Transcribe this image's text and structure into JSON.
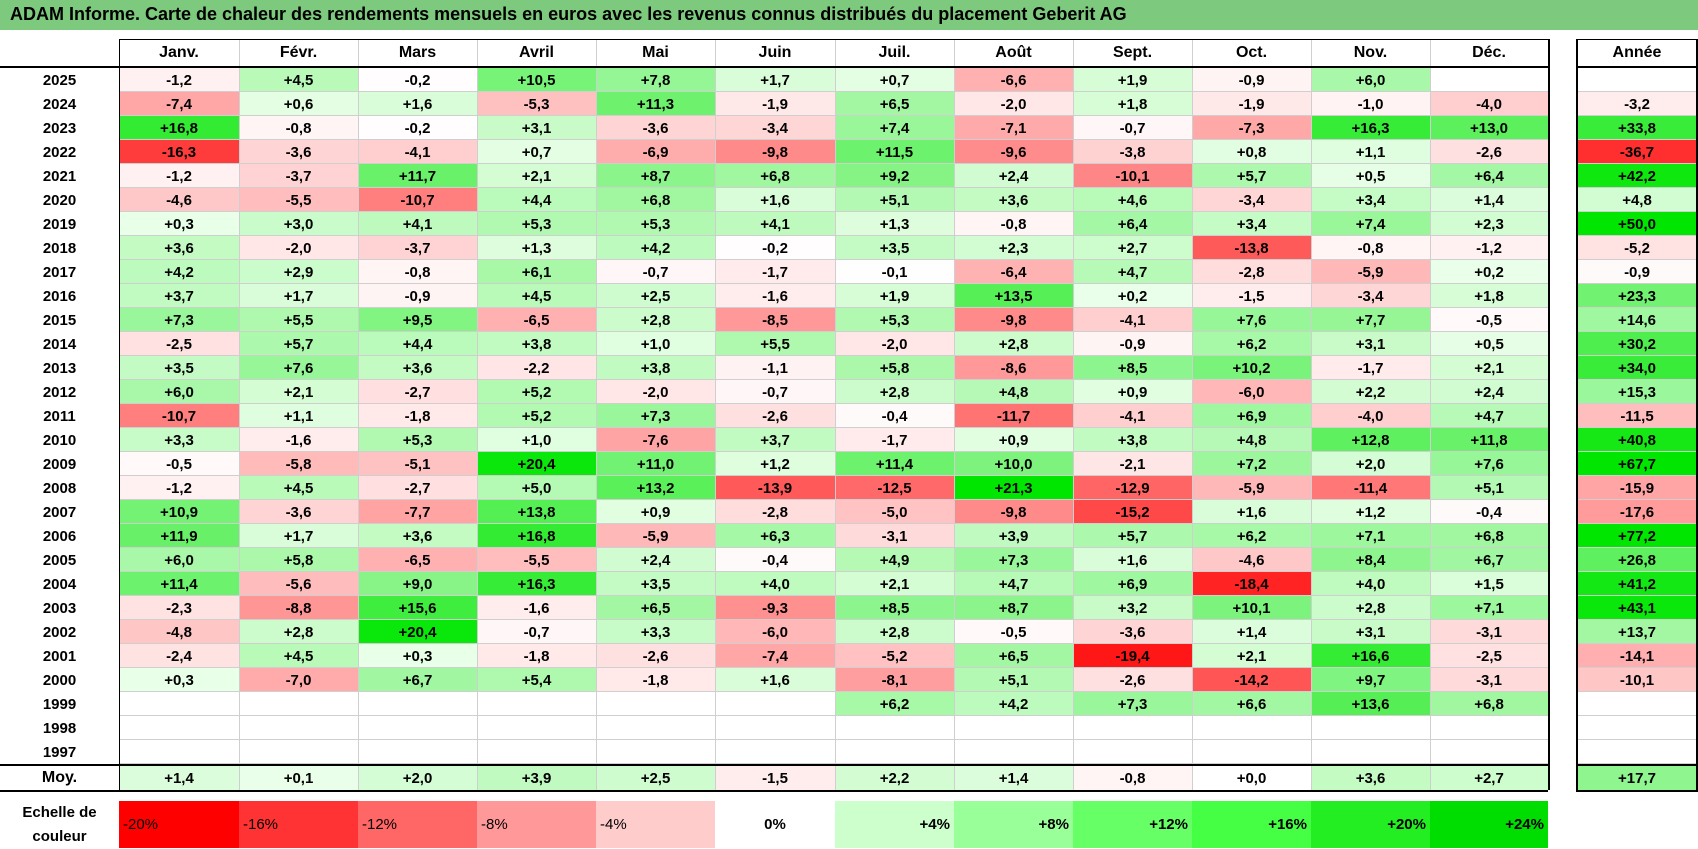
{
  "title": "ADAM Informe. Carte de chaleur des rendements mensuels en euros avec les revenus connus distribués du placement Geberit AG",
  "chart_data": {
    "type": "heatmap",
    "title": "ADAM Informe. Carte de chaleur des rendements mensuels en euros avec les revenus connus distribués du placement Geberit AG",
    "columns": [
      "Janv.",
      "Févr.",
      "Mars",
      "Avril",
      "Mai",
      "Juin",
      "Juil.",
      "Août",
      "Sept.",
      "Oct.",
      "Nov.",
      "Déc."
    ],
    "year_column": "Année",
    "rows": [
      {
        "year": "2025",
        "values": [
          "-1,2",
          "+4,5",
          "-0,2",
          "+10,5",
          "+7,8",
          "+1,7",
          "+0,7",
          "-6,6",
          "+1,9",
          "-0,9",
          "+6,0",
          ""
        ],
        "annual": ""
      },
      {
        "year": "2024",
        "values": [
          "-7,4",
          "+0,6",
          "+1,6",
          "-5,3",
          "+11,3",
          "-1,9",
          "+6,5",
          "-2,0",
          "+1,8",
          "-1,9",
          "-1,0",
          "-4,0"
        ],
        "annual": "-3,2"
      },
      {
        "year": "2023",
        "values": [
          "+16,8",
          "-0,8",
          "-0,2",
          "+3,1",
          "-3,6",
          "-3,4",
          "+7,4",
          "-7,1",
          "-0,7",
          "-7,3",
          "+16,3",
          "+13,0"
        ],
        "annual": "+33,8"
      },
      {
        "year": "2022",
        "values": [
          "-16,3",
          "-3,6",
          "-4,1",
          "+0,7",
          "-6,9",
          "-9,8",
          "+11,5",
          "-9,6",
          "-3,8",
          "+0,8",
          "+1,1",
          "-2,6"
        ],
        "annual": "-36,7"
      },
      {
        "year": "2021",
        "values": [
          "-1,2",
          "-3,7",
          "+11,7",
          "+2,1",
          "+8,7",
          "+6,8",
          "+9,2",
          "+2,4",
          "-10,1",
          "+5,7",
          "+0,5",
          "+6,4"
        ],
        "annual": "+42,2"
      },
      {
        "year": "2020",
        "values": [
          "-4,6",
          "-5,5",
          "-10,7",
          "+4,4",
          "+6,8",
          "+1,6",
          "+5,1",
          "+3,6",
          "+4,6",
          "-3,4",
          "+3,4",
          "+1,4"
        ],
        "annual": "+4,8"
      },
      {
        "year": "2019",
        "values": [
          "+0,3",
          "+3,0",
          "+4,1",
          "+5,3",
          "+5,3",
          "+4,1",
          "+1,3",
          "-0,8",
          "+6,4",
          "+3,4",
          "+7,4",
          "+2,3"
        ],
        "annual": "+50,0"
      },
      {
        "year": "2018",
        "values": [
          "+3,6",
          "-2,0",
          "-3,7",
          "+1,3",
          "+4,2",
          "-0,2",
          "+3,5",
          "+2,3",
          "+2,7",
          "-13,8",
          "-0,8",
          "-1,2"
        ],
        "annual": "-5,2"
      },
      {
        "year": "2017",
        "values": [
          "+4,2",
          "+2,9",
          "-0,8",
          "+6,1",
          "-0,7",
          "-1,7",
          "-0,1",
          "-6,4",
          "+4,7",
          "-2,8",
          "-5,9",
          "+0,2"
        ],
        "annual": "-0,9"
      },
      {
        "year": "2016",
        "values": [
          "+3,7",
          "+1,7",
          "-0,9",
          "+4,5",
          "+2,5",
          "-1,6",
          "+1,9",
          "+13,5",
          "+0,2",
          "-1,5",
          "-3,4",
          "+1,8"
        ],
        "annual": "+23,3"
      },
      {
        "year": "2015",
        "values": [
          "+7,3",
          "+5,5",
          "+9,5",
          "-6,5",
          "+2,8",
          "-8,5",
          "+5,3",
          "-9,8",
          "-4,1",
          "+7,6",
          "+7,7",
          "-0,5"
        ],
        "annual": "+14,6"
      },
      {
        "year": "2014",
        "values": [
          "-2,5",
          "+5,7",
          "+4,4",
          "+3,8",
          "+1,0",
          "+5,5",
          "-2,0",
          "+2,8",
          "-0,9",
          "+6,2",
          "+3,1",
          "+0,5"
        ],
        "annual": "+30,2"
      },
      {
        "year": "2013",
        "values": [
          "+3,5",
          "+7,6",
          "+3,6",
          "-2,2",
          "+3,8",
          "-1,1",
          "+5,8",
          "-8,6",
          "+8,5",
          "+10,2",
          "-1,7",
          "+2,1"
        ],
        "annual": "+34,0"
      },
      {
        "year": "2012",
        "values": [
          "+6,0",
          "+2,1",
          "-2,7",
          "+5,2",
          "-2,0",
          "-0,7",
          "+2,8",
          "+4,8",
          "+0,9",
          "-6,0",
          "+2,2",
          "+2,4"
        ],
        "annual": "+15,3"
      },
      {
        "year": "2011",
        "values": [
          "-10,7",
          "+1,1",
          "-1,8",
          "+5,2",
          "+7,3",
          "-2,6",
          "-0,4",
          "-11,7",
          "-4,1",
          "+6,9",
          "-4,0",
          "+4,7"
        ],
        "annual": "-11,5"
      },
      {
        "year": "2010",
        "values": [
          "+3,3",
          "-1,6",
          "+5,3",
          "+1,0",
          "-7,6",
          "+3,7",
          "-1,7",
          "+0,9",
          "+3,8",
          "+4,8",
          "+12,8",
          "+11,8"
        ],
        "annual": "+40,8"
      },
      {
        "year": "2009",
        "values": [
          "-0,5",
          "-5,8",
          "-5,1",
          "+20,4",
          "+11,0",
          "+1,2",
          "+11,4",
          "+10,0",
          "-2,1",
          "+7,2",
          "+2,0",
          "+7,6"
        ],
        "annual": "+67,7"
      },
      {
        "year": "2008",
        "values": [
          "-1,2",
          "+4,5",
          "-2,7",
          "+5,0",
          "+13,2",
          "-13,9",
          "-12,5",
          "+21,3",
          "-12,9",
          "-5,9",
          "-11,4",
          "+5,1"
        ],
        "annual": "-15,9"
      },
      {
        "year": "2007",
        "values": [
          "+10,9",
          "-3,6",
          "-7,7",
          "+13,8",
          "+0,9",
          "-2,8",
          "-5,0",
          "-9,8",
          "-15,2",
          "+1,6",
          "+1,2",
          "-0,4"
        ],
        "annual": "-17,6"
      },
      {
        "year": "2006",
        "values": [
          "+11,9",
          "+1,7",
          "+3,6",
          "+16,8",
          "-5,9",
          "+6,3",
          "-3,1",
          "+3,9",
          "+5,7",
          "+6,2",
          "+7,1",
          "+6,8"
        ],
        "annual": "+77,2"
      },
      {
        "year": "2005",
        "values": [
          "+6,0",
          "+5,8",
          "-6,5",
          "-5,5",
          "+2,4",
          "-0,4",
          "+4,9",
          "+7,3",
          "+1,6",
          "-4,6",
          "+8,4",
          "+6,7"
        ],
        "annual": "+26,8"
      },
      {
        "year": "2004",
        "values": [
          "+11,4",
          "-5,6",
          "+9,0",
          "+16,3",
          "+3,5",
          "+4,0",
          "+2,1",
          "+4,7",
          "+6,9",
          "-18,4",
          "+4,0",
          "+1,5"
        ],
        "annual": "+41,2"
      },
      {
        "year": "2003",
        "values": [
          "-2,3",
          "-8,8",
          "+15,6",
          "-1,6",
          "+6,5",
          "-9,3",
          "+8,5",
          "+8,7",
          "+3,2",
          "+10,1",
          "+2,8",
          "+7,1"
        ],
        "annual": "+43,1"
      },
      {
        "year": "2002",
        "values": [
          "-4,8",
          "+2,8",
          "+20,4",
          "-0,7",
          "+3,3",
          "-6,0",
          "+2,8",
          "-0,5",
          "-3,6",
          "+1,4",
          "+3,1",
          "-3,1"
        ],
        "annual": "+13,7"
      },
      {
        "year": "2001",
        "values": [
          "-2,4",
          "+4,5",
          "+0,3",
          "-1,8",
          "-2,6",
          "-7,4",
          "-5,2",
          "+6,5",
          "-19,4",
          "+2,1",
          "+16,6",
          "-2,5"
        ],
        "annual": "-14,1"
      },
      {
        "year": "2000",
        "values": [
          "+0,3",
          "-7,0",
          "+6,7",
          "+5,4",
          "-1,8",
          "+1,6",
          "-8,1",
          "+5,1",
          "-2,6",
          "-14,2",
          "+9,7",
          "-3,1"
        ],
        "annual": "-10,1"
      },
      {
        "year": "1999",
        "values": [
          "",
          "",
          "",
          "",
          "",
          "",
          "+6,2",
          "+4,2",
          "+7,3",
          "+6,6",
          "+13,6",
          "+6,8"
        ],
        "annual": ""
      },
      {
        "year": "1998",
        "values": [
          "",
          "",
          "",
          "",
          "",
          "",
          "",
          "",
          "",
          "",
          "",
          ""
        ],
        "annual": ""
      },
      {
        "year": "1997",
        "values": [
          "",
          "",
          "",
          "",
          "",
          "",
          "",
          "",
          "",
          "",
          "",
          ""
        ],
        "annual": ""
      }
    ],
    "average": {
      "label": "Moy.",
      "values": [
        "+1,4",
        "+0,1",
        "+2,0",
        "+3,9",
        "+2,5",
        "-1,5",
        "+2,2",
        "+1,4",
        "-0,8",
        "+0,0",
        "+3,6",
        "+2,7"
      ],
      "annual": "+17,7"
    },
    "color_scale": {
      "label": [
        "Echelle de",
        "couleur"
      ],
      "steps": [
        {
          "label": "-20%",
          "value": -20,
          "color": "#ff0000"
        },
        {
          "label": "-16%",
          "value": -16,
          "color": "#ff3333"
        },
        {
          "label": "-12%",
          "value": -12,
          "color": "#ff6666"
        },
        {
          "label": "-8%",
          "value": -8,
          "color": "#ff9999"
        },
        {
          "label": "-4%",
          "value": -4,
          "color": "#ffcccc"
        },
        {
          "label": "0%",
          "value": 0,
          "color": "#ffffff"
        },
        {
          "label": "+4%",
          "value": 4,
          "color": "#ccffcc"
        },
        {
          "label": "+8%",
          "value": 8,
          "color": "#99ff99"
        },
        {
          "label": "+12%",
          "value": 12,
          "color": "#66ff66"
        },
        {
          "label": "+16%",
          "value": 16,
          "color": "#44ff44"
        },
        {
          "label": "+20%",
          "value": 20,
          "color": "#22ee22"
        },
        {
          "label": "+24%",
          "value": 24,
          "color": "#00dd00"
        }
      ]
    },
    "colors": {
      "title_bar": "#7dc97d",
      "negative_max": "#ff0000",
      "positive_max": "#00dd00"
    }
  }
}
